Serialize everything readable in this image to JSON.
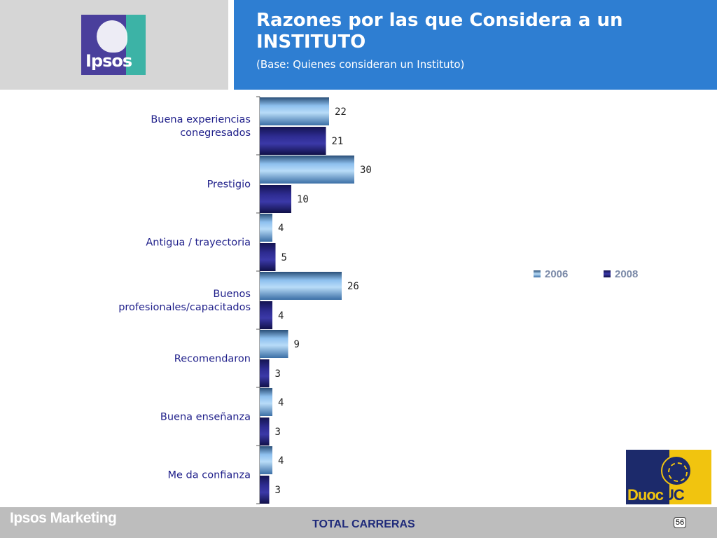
{
  "logo": {
    "text": "Ipsos"
  },
  "header": {
    "title": "Razones por las que Considera a un INSTITUTO",
    "subtitle": "(Base: Quienes consideran un Instituto)"
  },
  "legend": {
    "items": [
      {
        "label": "2006"
      },
      {
        "label": "2008"
      }
    ]
  },
  "colors": {
    "series_2006": "#7fb2e5",
    "series_2008": "#2b2a86",
    "header_band": "#2e7ed2",
    "footer": "#bdbdbd"
  },
  "footer": {
    "brand": "Ipsos Marketing",
    "center": "TOTAL CARRERAS",
    "page": "56"
  },
  "partner_logo": {
    "text_a": "Duoc",
    "text_b": "UC"
  },
  "chart_data": {
    "type": "bar",
    "orientation": "horizontal",
    "categories": [
      [
        "Buena experiencias",
        "conegresados"
      ],
      [
        "Prestigio"
      ],
      [
        "Antigua / trayectoria"
      ],
      [
        "Buenos",
        "profesionales/capacitados"
      ],
      [
        "Recomendaron"
      ],
      [
        "Buena enseñanza"
      ],
      [
        "Me da confianza"
      ]
    ],
    "series": [
      {
        "name": "2006",
        "values": [
          22,
          30,
          4,
          26,
          9,
          4,
          4
        ]
      },
      {
        "name": "2008",
        "values": [
          21,
          10,
          5,
          4,
          3,
          3,
          3
        ]
      }
    ],
    "xlim": [
      0,
      100
    ],
    "legend_position": "right",
    "grid": false
  }
}
